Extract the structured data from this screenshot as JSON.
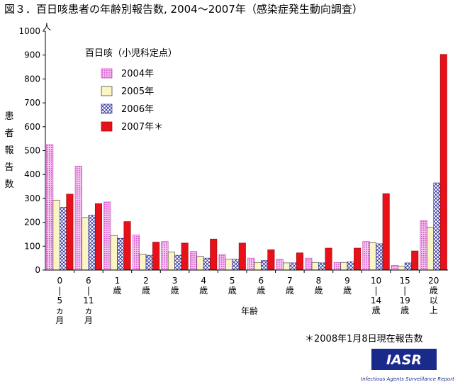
{
  "chart_data": {
    "type": "bar",
    "title": "図３．百日咳患者の年齢別報告数, 2004～2007年（感染症発生動向調査）",
    "ylabel": "患者報告数",
    "yunit": "人",
    "xlabel": "年齢",
    "ylim": [
      0,
      1000
    ],
    "yticks": [
      "0",
      "100",
      "200",
      "300",
      "400",
      "500",
      "600",
      "700",
      "800",
      "900",
      "1000"
    ],
    "legend_title": "百日咳（小児科定点）",
    "legend_position": "top-left",
    "grid": false,
    "categories": [
      {
        "label_lines": [
          "0",
          "|",
          "5",
          "ヵ",
          "月"
        ]
      },
      {
        "label_lines": [
          "6",
          "|",
          "11",
          "ヵ",
          "月"
        ]
      },
      {
        "label_lines": [
          "1",
          "歳"
        ]
      },
      {
        "label_lines": [
          "2",
          "歳"
        ]
      },
      {
        "label_lines": [
          "3",
          "歳"
        ]
      },
      {
        "label_lines": [
          "4",
          "歳"
        ]
      },
      {
        "label_lines": [
          "5",
          "歳"
        ]
      },
      {
        "label_lines": [
          "6",
          "歳"
        ]
      },
      {
        "label_lines": [
          "7",
          "歳"
        ]
      },
      {
        "label_lines": [
          "8",
          "歳"
        ]
      },
      {
        "label_lines": [
          "9",
          "歳"
        ]
      },
      {
        "label_lines": [
          "10",
          "|",
          "14",
          "歳"
        ]
      },
      {
        "label_lines": [
          "15",
          "|",
          "19",
          "歳"
        ]
      },
      {
        "label_lines": [
          "20",
          "歳",
          "以",
          "上"
        ]
      }
    ],
    "series": [
      {
        "name": "2004年",
        "pattern": "pink-dots",
        "color": "#e070d8",
        "values": [
          525,
          435,
          285,
          147,
          120,
          78,
          65,
          50,
          45,
          50,
          32,
          120,
          20,
          207
        ]
      },
      {
        "name": "2005年",
        "pattern": "solid-cream",
        "color": "#fbf5c4",
        "values": [
          293,
          220,
          145,
          67,
          75,
          58,
          45,
          32,
          30,
          32,
          32,
          115,
          17,
          180
        ]
      },
      {
        "name": "2006年",
        "pattern": "crosshatch",
        "color": "#2a2a9a",
        "values": [
          263,
          230,
          133,
          62,
          62,
          50,
          45,
          40,
          30,
          30,
          35,
          110,
          30,
          365
        ]
      },
      {
        "name": "2007年＊",
        "pattern": "solid-red",
        "color": "#e8111a",
        "values": [
          318,
          278,
          203,
          117,
          113,
          130,
          113,
          85,
          72,
          92,
          92,
          320,
          80,
          903
        ]
      }
    ],
    "footnote": "＊2008年1月8日現在報告数"
  },
  "logo": {
    "text": "IASR",
    "subtitle": "Infectious Agents Surveillance Report",
    "bg_color": "#1a2a8a"
  }
}
